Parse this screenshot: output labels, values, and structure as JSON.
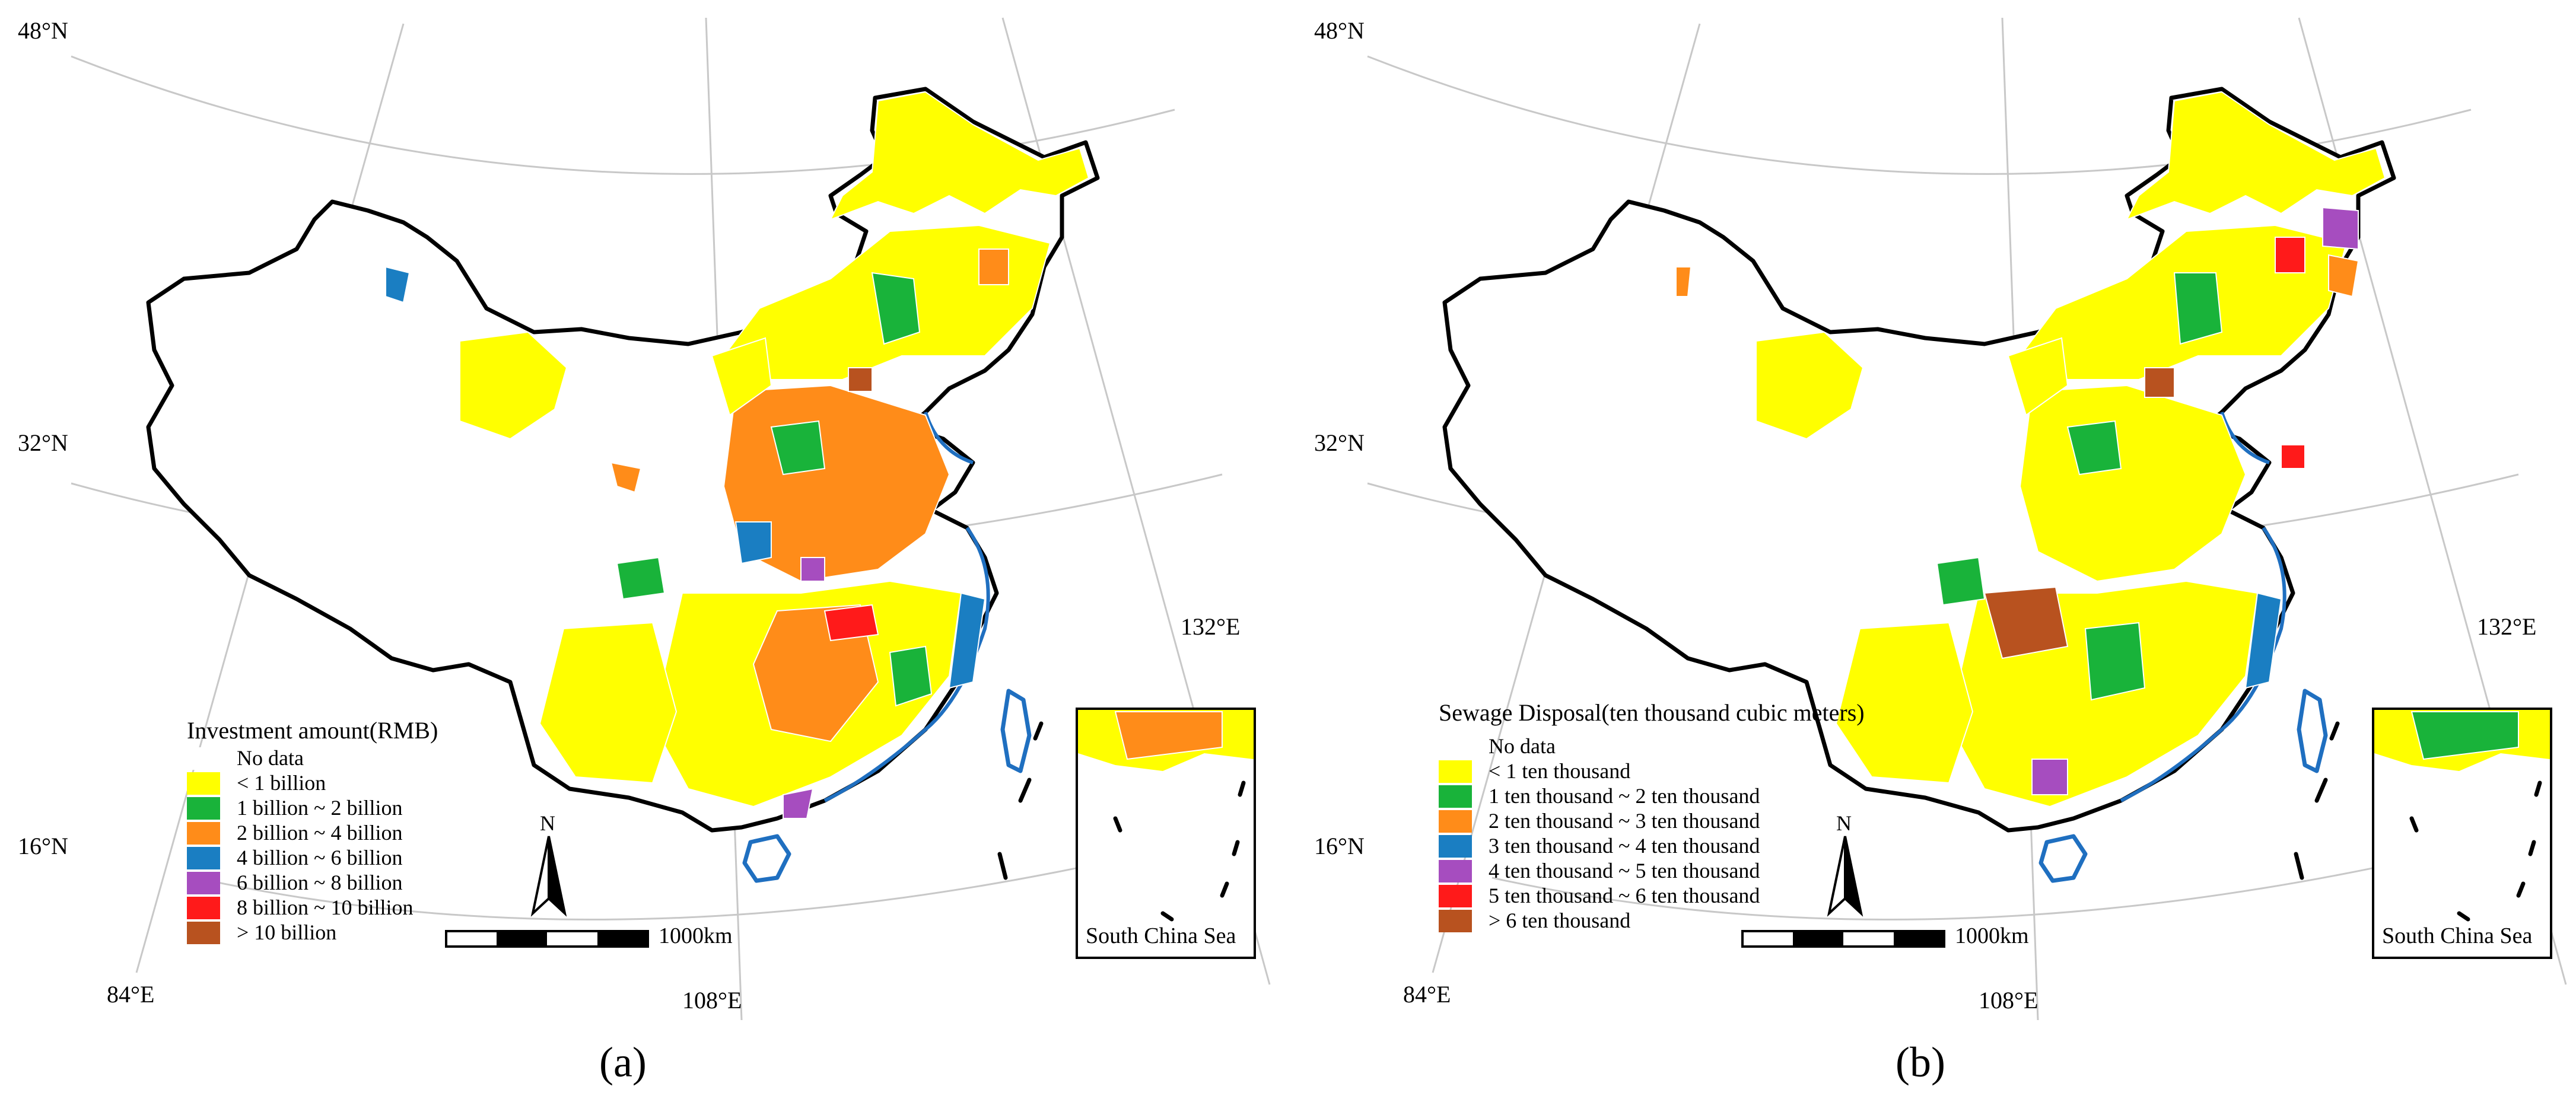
{
  "colors": {
    "no_data": "#ffffff",
    "c1": "#ffff00",
    "c2": "#19b33a",
    "c3": "#ff8c19",
    "c4": "#1a7ec2",
    "c5": "#a64dbf",
    "c6": "#ff1a1a",
    "c7": "#b8521f",
    "border": "#000000",
    "coast": "#1f6fc0",
    "graticule": "#c8c8c8"
  },
  "panels": [
    {
      "panel_label": "(a)",
      "coords": {
        "lat_top": "48°N",
        "lat_mid": "32°N",
        "lat_low": "16°N",
        "lon_left": "84°E",
        "lon_mid": "108°E",
        "lon_right": "132°E"
      },
      "legend": {
        "title": "Investment amount(RMB)",
        "items": [
          {
            "label": "No data",
            "color_key": "no_data"
          },
          {
            "label": "< 1 billion",
            "color_key": "c1"
          },
          {
            "label": "1 billion ~ 2 billion",
            "color_key": "c2"
          },
          {
            "label": "2 billion ~ 4 billion",
            "color_key": "c3"
          },
          {
            "label": "4 billion ~ 6 billion",
            "color_key": "c4"
          },
          {
            "label": "6 billion ~ 8 billion",
            "color_key": "c5"
          },
          {
            "label": "8 billion ~ 10 billion",
            "color_key": "c6"
          },
          {
            "label": "> 10 billion",
            "color_key": "c7"
          }
        ]
      },
      "north_label": "N",
      "scale_label": "1000km",
      "inset_label": "South China Sea"
    },
    {
      "panel_label": "(b)",
      "coords": {
        "lat_top": "48°N",
        "lat_mid": "32°N",
        "lat_low": "16°N",
        "lon_left": "84°E",
        "lon_mid": "108°E",
        "lon_right": "132°E"
      },
      "legend": {
        "title": "Sewage Disposal(ten thousand cubic meters)",
        "items": [
          {
            "label": "No data",
            "color_key": "no_data"
          },
          {
            "label": "< 1 ten thousand",
            "color_key": "c1"
          },
          {
            "label": "1 ten thousand ~ 2 ten thousand",
            "color_key": "c2"
          },
          {
            "label": "2 ten thousand ~ 3 ten thousand",
            "color_key": "c3"
          },
          {
            "label": "3 ten thousand ~ 4 ten thousand",
            "color_key": "c4"
          },
          {
            "label": "4 ten thousand ~ 5 ten thousand",
            "color_key": "c5"
          },
          {
            "label": "5 ten thousand ~ 6 ten thousand",
            "color_key": "c6"
          },
          {
            "label": "> 6 ten thousand",
            "color_key": "c7"
          }
        ]
      },
      "north_label": "N",
      "scale_label": "1000km",
      "inset_label": "South China Sea"
    }
  ]
}
